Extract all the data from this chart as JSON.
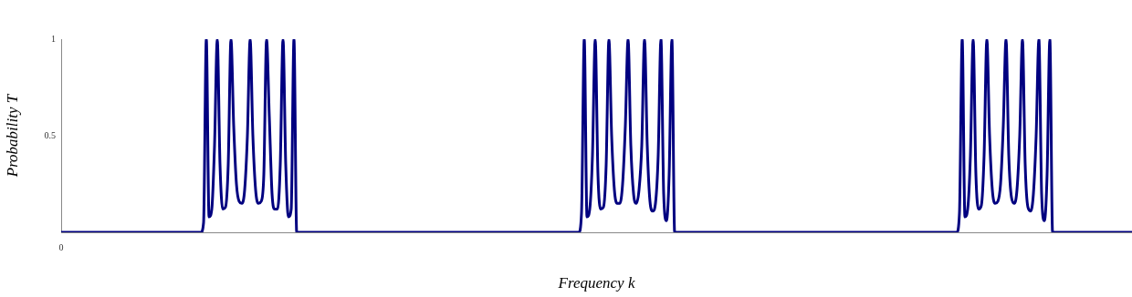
{
  "chart_data": {
    "type": "line",
    "xlabel": "Frequency k",
    "ylabel": "Probability T",
    "annotations": [
      "0"
    ],
    "ylim": [
      0,
      1
    ],
    "yticks": [
      0.5,
      1
    ],
    "categories": [
      null,
      null,
      null,
      null,
      null,
      null,
      null,
      null,
      null,
      null,
      null,
      null,
      null,
      null,
      null,
      null,
      null,
      null,
      null,
      null,
      null,
      null,
      null,
      null,
      null,
      null,
      null,
      null,
      null,
      null,
      null,
      null,
      null,
      null,
      null,
      null,
      null,
      null,
      null,
      null,
      null,
      null,
      null,
      null,
      null,
      null,
      null,
      null,
      null,
      null,
      null,
      null,
      null,
      null,
      null,
      null,
      null,
      null,
      null,
      null,
      null,
      null,
      null,
      null,
      null,
      null,
      null,
      null,
      null,
      null,
      null,
      null,
      null,
      null,
      null,
      null,
      null,
      null,
      null,
      null,
      null,
      null,
      null,
      null,
      null,
      null,
      null,
      null,
      null,
      null,
      null,
      null,
      null,
      null,
      null,
      null,
      null,
      null,
      null,
      null,
      null,
      null,
      null,
      null,
      null,
      null,
      null,
      null,
      null,
      null,
      null,
      null,
      null,
      null,
      null,
      null,
      null,
      null,
      null,
      null,
      null,
      null,
      null,
      null,
      null,
      null,
      null,
      null,
      null,
      null,
      null,
      null,
      null,
      null,
      null,
      null,
      null,
      null,
      null,
      null,
      null,
      null,
      null,
      null,
      null,
      null,
      null,
      null,
      null,
      null,
      null,
      null,
      null,
      null,
      null,
      null,
      null,
      null,
      null,
      null,
      null,
      null,
      null,
      null,
      null,
      null,
      null,
      null,
      null,
      null,
      null,
      null,
      null,
      null,
      null,
      null,
      null,
      null,
      null,
      null,
      null,
      null,
      null,
      null,
      null,
      null,
      null,
      null,
      null,
      null,
      null,
      null,
      null,
      null,
      null,
      null,
      null,
      null,
      null,
      null,
      null,
      null,
      null,
      null,
      null,
      null,
      null,
      null,
      null,
      null,
      null,
      null,
      null,
      null,
      null,
      null,
      null,
      null,
      null,
      null,
      null,
      null,
      null,
      null,
      null,
      null,
      null,
      null,
      null,
      null,
      null,
      null,
      null,
      null,
      null,
      null,
      null,
      null,
      null,
      null,
      null,
      null,
      null,
      null,
      null,
      null,
      null,
      null,
      null,
      null,
      null,
      null,
      null,
      null,
      null,
      null,
      null,
      null,
      null,
      null,
      null,
      null,
      null,
      null,
      null,
      null,
      null,
      null,
      null,
      null,
      null,
      null,
      null,
      null,
      null,
      null,
      null,
      null,
      null,
      null,
      null,
      null,
      null,
      null,
      null,
      null,
      null,
      null,
      null,
      null,
      null,
      null,
      null,
      null,
      null,
      null,
      null,
      null,
      null,
      null,
      null,
      null,
      null,
      null,
      null,
      null,
      null,
      null,
      null,
      null,
      null,
      null,
      null,
      null,
      null,
      null,
      null,
      null,
      null,
      null,
      null,
      null,
      null,
      null,
      null,
      null,
      null,
      null,
      null,
      null,
      null,
      null,
      null,
      null,
      null,
      null,
      null,
      null,
      null,
      null,
      null,
      null,
      null,
      null,
      null,
      null,
      null,
      null,
      null,
      null,
      null,
      null,
      null,
      null,
      null,
      null,
      null,
      null,
      null,
      null,
      null,
      null,
      null,
      null,
      null,
      null,
      null,
      null,
      null,
      null,
      null,
      null,
      null,
      null,
      null,
      null,
      null,
      null,
      null,
      null,
      null,
      null,
      null,
      null,
      null,
      null,
      null,
      null,
      null,
      null,
      null,
      null
    ],
    "series": [
      {
        "color": "#000080",
        "values": [
          0,
          0,
          0,
          0,
          0,
          0,
          0,
          0,
          0,
          0,
          0,
          0,
          0,
          0,
          0,
          0,
          0,
          0,
          0,
          0,
          0,
          0,
          0,
          0,
          0,
          0,
          0,
          0,
          0,
          0,
          0,
          0,
          0,
          0,
          0,
          0,
          0,
          0,
          0,
          0,
          0,
          0,
          0,
          0,
          0,
          0,
          0,
          0,
          0,
          0,
          0,
          0,
          0.05,
          1,
          0.08,
          0.12,
          0.45,
          1,
          0.35,
          0.12,
          0.13,
          0.35,
          1,
          0.55,
          0.25,
          0.16,
          0.15,
          0.22,
          0.5,
          1,
          0.5,
          0.22,
          0.15,
          0.16,
          0.3,
          1,
          0.6,
          0.2,
          0.12,
          0.12,
          0.35,
          1,
          0.35,
          0.08,
          0.12,
          1,
          0,
          0,
          0,
          0,
          0,
          0,
          0,
          0,
          0,
          0,
          0,
          0,
          0,
          0,
          0,
          0,
          0,
          0,
          0,
          0,
          0,
          0,
          0,
          0,
          0,
          0,
          0,
          0,
          0,
          0,
          0,
          0,
          0,
          0,
          0,
          0,
          0,
          0,
          0,
          0,
          0,
          0,
          0,
          0,
          0,
          0,
          0,
          0,
          0,
          0,
          0,
          0,
          0,
          0,
          0,
          0,
          0,
          0,
          0,
          0,
          0,
          0,
          0,
          0,
          0,
          0,
          0,
          0,
          0,
          0,
          0,
          0,
          0,
          0,
          0,
          0,
          0,
          0,
          0,
          0,
          0,
          0,
          0,
          0,
          0,
          0,
          0,
          0,
          0,
          0,
          0,
          0,
          0,
          0,
          0,
          0,
          0,
          0,
          0,
          0,
          0,
          0,
          0,
          0,
          0.1,
          1,
          0.08,
          0.12,
          0.4,
          1,
          0.3,
          0.12,
          0.13,
          0.35,
          1,
          0.5,
          0.22,
          0.15,
          0.15,
          0.25,
          0.55,
          1,
          0.45,
          0.2,
          0.15,
          0.22,
          0.45,
          1,
          0.45,
          0.16,
          0.11,
          0.15,
          0.4,
          1,
          0.2,
          0.06,
          0.3,
          1,
          0,
          0,
          0,
          0,
          0,
          0,
          0,
          0,
          0,
          0,
          0,
          0,
          0,
          0,
          0,
          0,
          0,
          0,
          0,
          0,
          0,
          0,
          0,
          0,
          0,
          0,
          0,
          0,
          0,
          0,
          0,
          0,
          0,
          0,
          0,
          0,
          0,
          0,
          0,
          0,
          0,
          0,
          0,
          0,
          0,
          0,
          0,
          0,
          0,
          0,
          0,
          0,
          0,
          0,
          0,
          0,
          0,
          0,
          0,
          0,
          0,
          0,
          0,
          0,
          0,
          0,
          0,
          0,
          0,
          0,
          0,
          0,
          0,
          0,
          0,
          0,
          0,
          0,
          0,
          0,
          0,
          0,
          0,
          0,
          0,
          0,
          0,
          0,
          0,
          0,
          0,
          0,
          0,
          0,
          0,
          0,
          0,
          0,
          0,
          0,
          0,
          0,
          0,
          0,
          0.1,
          1,
          0.08,
          0.12,
          0.4,
          1,
          0.3,
          0.12,
          0.14,
          0.4,
          1,
          0.5,
          0.22,
          0.15,
          0.16,
          0.25,
          0.55,
          1,
          0.4,
          0.18,
          0.15,
          0.22,
          0.5,
          1,
          0.35,
          0.13,
          0.11,
          0.2,
          0.5,
          1,
          0.2,
          0.06,
          0.3,
          1,
          0,
          0,
          0,
          0,
          0,
          0,
          0,
          0,
          0,
          0,
          0,
          0,
          0,
          0,
          0,
          0,
          0,
          0,
          0,
          0,
          0,
          0,
          0,
          0,
          0,
          0,
          0,
          0,
          0,
          0
        ]
      }
    ]
  }
}
